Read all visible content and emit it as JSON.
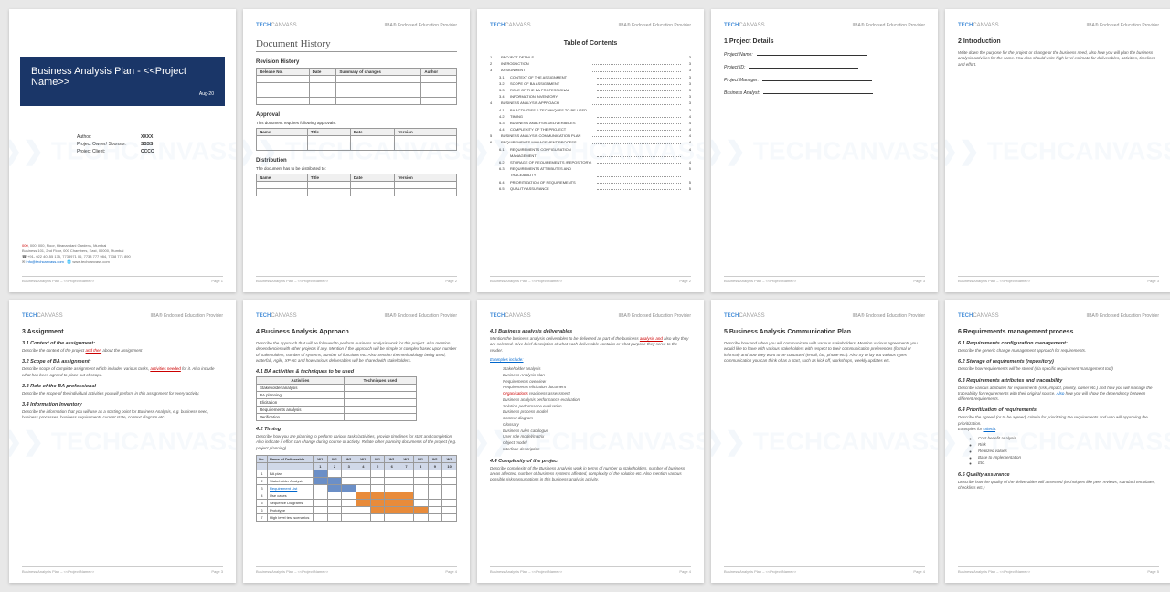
{
  "brand": {
    "left": "TECH",
    "left2": "CANVASS",
    "right": "IIBA® Endorsed Education Provider"
  },
  "watermark": "TECHCANVASS",
  "footer": {
    "left": "Business Analysis Plan – <<Project Name>>",
    "right_prefix": "Page "
  },
  "p1": {
    "title": "Business Analysis Plan - <<Project Name>>",
    "date": "Aug-20",
    "meta": [
      [
        "Author:",
        "XXXX"
      ],
      [
        "Project Owner/ Sponsor:",
        "SSSS"
      ],
      [
        "Project Client:",
        "CCCC"
      ]
    ],
    "addr": {
      "l1": "000, 000, Floor, Hiranandani Gardens, Mumbai",
      "l2": "Business 101, 2nd Floor, 000 Chambers, East, 00000, Mumbai",
      "l3": "+91- 022 40155 175, 7738971 06, 7738 777 984, 7738 771 890",
      "l4a": "info@techcanvass.com",
      "l4b": "www.techcanvass.com"
    }
  },
  "p2": {
    "title": "Document History",
    "rev": {
      "h": "Revision History",
      "cols": [
        "Release No.",
        "Date",
        "Summary of changes",
        "Author"
      ],
      "rows": 4
    },
    "app": {
      "h": "Approval",
      "sub": "This document requires following approvals:",
      "cols": [
        "Name",
        "Title",
        "Date",
        "Version"
      ],
      "rows": 2
    },
    "dist": {
      "h": "Distribution",
      "sub": "The document has to be distributed to:",
      "cols": [
        "Name",
        "Title",
        "Date",
        "Version"
      ],
      "rows": 2
    }
  },
  "p3": {
    "title": "Table of Contents",
    "items": [
      {
        "n": "1",
        "t": "Project Details",
        "p": "3"
      },
      {
        "n": "2",
        "t": "Introduction",
        "p": "3"
      },
      {
        "n": "3",
        "t": "Assignment",
        "p": "3"
      },
      {
        "n": "3.1",
        "t": "Context of the assignment",
        "p": "3",
        "lvl": 1
      },
      {
        "n": "3.2",
        "t": "Scope of BA assignment",
        "p": "3",
        "lvl": 1
      },
      {
        "n": "3.3",
        "t": "Role of the BA professional",
        "p": "3",
        "lvl": 1
      },
      {
        "n": "3.4",
        "t": "Information inventory",
        "p": "3",
        "lvl": 1
      },
      {
        "n": "4",
        "t": "Business Analysis Approach",
        "p": "3"
      },
      {
        "n": "4.1",
        "t": "BA activities & techniques to be used",
        "p": "3",
        "lvl": 1
      },
      {
        "n": "4.2",
        "t": "Timing",
        "p": "4",
        "lvl": 1
      },
      {
        "n": "4.3",
        "t": "Business analysis deliverables",
        "p": "4",
        "lvl": 1
      },
      {
        "n": "4.4",
        "t": "Complexity of the project",
        "p": "4",
        "lvl": 1
      },
      {
        "n": "5",
        "t": "Business Analysis Communication Plan",
        "p": "4"
      },
      {
        "n": "6",
        "t": "Requirements management process",
        "p": "4"
      },
      {
        "n": "6.1",
        "t": "Requirements configuration management",
        "p": "4",
        "lvl": 1
      },
      {
        "n": "6.2",
        "t": "Storage of requirements (repository)",
        "p": "4",
        "lvl": 1
      },
      {
        "n": "6.3",
        "t": "Requirements attributes and traceability",
        "p": "5",
        "lvl": 1
      },
      {
        "n": "6.4",
        "t": "Prioritization of requirements",
        "p": "5",
        "lvl": 1
      },
      {
        "n": "6.5",
        "t": "Quality assurance",
        "p": "5",
        "lvl": 1
      }
    ]
  },
  "p4": {
    "h": "1   Project Details",
    "fields": [
      "Project Name:",
      "Project ID:",
      "Project Manager:",
      "Business Analyst:"
    ]
  },
  "p5": {
    "h": "2   Introduction",
    "body": "Write down the purpose for the project or change or the business need, also how you will plan the business analysis activities for the same. You also should write high level estimate for deliverables, activities, timelines and effort."
  },
  "p6": {
    "h": "3   Assignment",
    "s1": {
      "h": "3.1  Context of the assignment:",
      "b": "Describe the context of the project and then about the assignment",
      "link": "and then"
    },
    "s2": {
      "h": "3.2  Scope of BA assignment:",
      "b": "Describe scope of complete assignment which includes various tasks, activities needed for it. Also include what has been agreed to place out of scope.",
      "link": "activities needed"
    },
    "s3": {
      "h": "3.3  Role of the BA professional",
      "b": "Describe the scope of the individual activities you will perform in this assignment for every activity."
    },
    "s4": {
      "h": "3.4  Information Inventory",
      "b": "Describe the information that you will use as a starting point for Business Analysis, e.g. business need, business processes, business requirements current state, context diagram etc."
    }
  },
  "p7": {
    "h": "4   Business Analysis Approach",
    "intro": "Describe the approach that will be followed to perform business analysis work for this project. Also mention dependencies with other projects if any. Mention if the approach will be simple or complex based upon number of stakeholders, number of systems, number of functions etc. Also mention the methodology being used, waterfall, Agile, XP etc and how various deliverables will be shared with stakeholders.",
    "s1": {
      "h": "4.1  BA activities & techniques to be used",
      "cols": [
        "Activities",
        "Techniques used"
      ],
      "rows": [
        "Stakeholder analysis",
        "BA planning",
        "Elicitation",
        "Requirements analysis",
        "Verification"
      ]
    },
    "s2": {
      "h": "4.2  Timing",
      "b": "Describe how you are planning to perform various tasks/activities, provide timelines for start and completion. Also indicate if effort can change during course of activity. Relate other planning documents of the project (e.g. project planning)."
    },
    "gantt": {
      "cols": [
        "No.",
        "Name of Deliverable",
        "W1",
        "W1",
        "W1",
        "W1",
        "W1",
        "W1",
        "W1",
        "W1",
        "W1",
        "W1"
      ],
      "sub": [
        "",
        "",
        "1",
        "2",
        "3",
        "4",
        "5",
        "6",
        "7",
        "8",
        "9",
        "10"
      ],
      "rows": [
        {
          "n": "1",
          "name": "BA plan",
          "bars": [
            [
              0,
              0,
              "b"
            ]
          ]
        },
        {
          "n": "2",
          "name": "Stakeholder Analysis",
          "bars": [
            [
              0,
              1,
              "b"
            ]
          ]
        },
        {
          "n": "3",
          "name": "Requirement List",
          "bars": [
            [
              1,
              2,
              "b"
            ]
          ],
          "link": true
        },
        {
          "n": "4",
          "name": "Use cases",
          "bars": [
            [
              3,
              6,
              "o"
            ]
          ]
        },
        {
          "n": "5",
          "name": "Sequence Diagrams",
          "bars": [
            [
              3,
              6,
              "o"
            ]
          ]
        },
        {
          "n": "6",
          "name": "Prototype",
          "bars": [
            [
              4,
              7,
              "o"
            ]
          ]
        },
        {
          "n": "7",
          "name": "High level test scenarios",
          "bars": []
        }
      ]
    }
  },
  "p8": {
    "s3": {
      "h": "4.3  Business analysis deliverables",
      "b1": "Mention the business analysis deliverables to be delivered as part of the business analysis and also why they are selected. Give brief description of what each deliverable contains or what purpose they serve to the reader.",
      "link": "analysis and",
      "ex": "Examples include:",
      "items": [
        "Stakeholder analysis",
        "Business Analysis plan",
        "Requirements overview",
        "Requirements elicitation document",
        "Organisations readiness assessment",
        "Business analysis performance evaluation",
        "Solution performance evaluation",
        "Business process model",
        "Context diagram",
        "Glossary",
        "Business rules catalogue",
        "User role model/matrix",
        "Object model",
        "Interface description"
      ],
      "red": "Organisations"
    },
    "s4": {
      "h": "4.4  Complexity of the project",
      "b": "Describe complexity of the Business Analysis work in terms of number of stakeholders, number of business areas affected, number of business systems affected, complexity of the solution etc.\nAlso mention various possible risks/assumptions in this business analysis activity."
    }
  },
  "p9": {
    "h": "5   Business Analysis Communication Plan",
    "b": "Describe how and when you will communicate with various stakeholders.\nMention various agreements you would like to have with various stakeholders with respect to their communication preferences (formal or informal) and how they want to be contacted (email, fax, phone etc.). Also try to lay out various types communication you can think of as a start, such as kick off, workshops, weekly updates etc."
  },
  "p10": {
    "h": "6   Requirements management process",
    "s1": {
      "h": "6.1  Requirements configuration management:",
      "b": "Describe the generic change management approach for requirements."
    },
    "s2": {
      "h": "6.2  Storage of requirements (repository)",
      "b": "Describe how requirements will be stored (via specific requirement management tool)"
    },
    "s3": {
      "h": "6.3  Requirements attributes and traceability",
      "b": "Describe various attributes for requirements (risk, impact, priority, owner etc.) and how you will manage the traceability for requirements with their original source. Also how you will show the dependency between different requirements.",
      "link": "Also"
    },
    "s4": {
      "h": "6.4  Prioritization of requirements",
      "b": "Describe the agreed (or to be agreed) criteria for prioritizing the requirements and who will approving the prioritization.\nExamples for criteria:",
      "link": "criteria",
      "items": [
        "Cost benefit analysis",
        "Risk",
        "Realized values",
        "Base to implementation",
        "Etc."
      ]
    },
    "s5": {
      "h": "6.5  Quality assurance",
      "b": "Describe how the quality of the deliverables will assessed (techniques like peer reviews, standard templates, checklists etc.)"
    }
  }
}
